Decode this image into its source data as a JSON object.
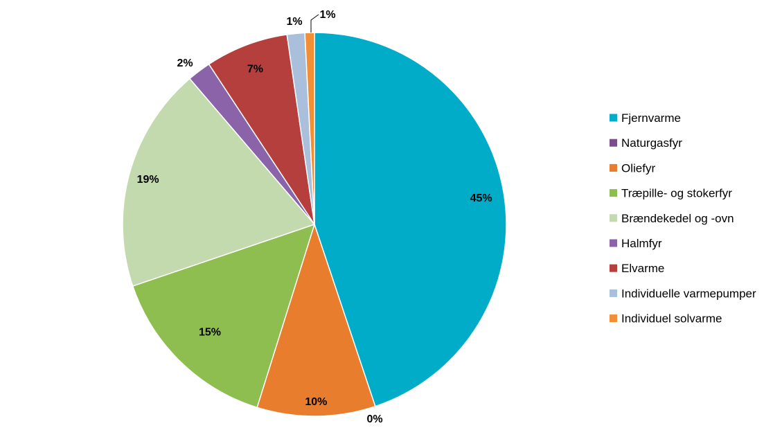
{
  "chart_data": {
    "type": "pie",
    "title": "",
    "legend_position": "right",
    "slices": [
      {
        "name": "Fjernvarme",
        "value": 45,
        "label": "45%",
        "color": "#00ACC8"
      },
      {
        "name": "Naturgasfyr",
        "value": 0,
        "label": "0%",
        "color": "#7A4E8C"
      },
      {
        "name": "Oliefyr",
        "value": 10,
        "label": "10%",
        "color": "#E87D2E"
      },
      {
        "name": "Træpille- og stokerfyr",
        "value": 15,
        "label": "15%",
        "color": "#8DBE4F"
      },
      {
        "name": "Brændekedel og -ovn",
        "value": 19,
        "label": "19%",
        "color": "#C3D9AE"
      },
      {
        "name": "Halmfyr",
        "value": 2,
        "label": "2%",
        "color": "#8B63A8"
      },
      {
        "name": "Elvarme",
        "value": 7,
        "label": "7%",
        "color": "#B43F3D"
      },
      {
        "name": "Individuelle varmepumper",
        "value": 1.5,
        "label": "1%",
        "color": "#AABFDB"
      },
      {
        "name": "Individuel solvarme",
        "value": 0.8,
        "label": "1%",
        "color": "#F28E35"
      }
    ]
  }
}
